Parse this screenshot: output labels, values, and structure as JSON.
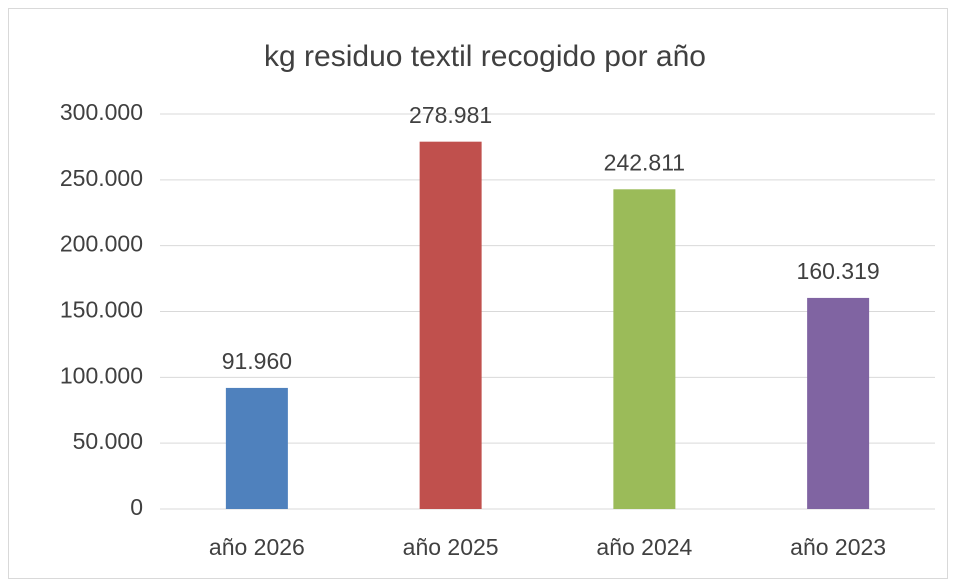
{
  "chart_data": {
    "type": "bar",
    "title": "kg residuo textil recogido por año",
    "categories": [
      "año 2026",
      "año 2025",
      "año 2024",
      "año 2023"
    ],
    "values": [
      91960,
      278981,
      242811,
      160319
    ],
    "value_labels": [
      "91.960",
      "278.981",
      "242.811",
      "160.319"
    ],
    "colors": [
      "#4f81bd",
      "#c0504d",
      "#9bbb59",
      "#8064a2"
    ],
    "ylim": [
      0,
      300000
    ],
    "yticks": [
      0,
      {
        "value": 50000,
        "label": "50.000"
      },
      {
        "value": 100000,
        "label": "100.000"
      },
      {
        "value": 150000,
        "label": "150.000"
      },
      {
        "value": 200000,
        "label": "200.000"
      },
      {
        "value": 250000,
        "label": "250.000"
      },
      {
        "value": 300000,
        "label": "300.000"
      }
    ],
    "grid": true
  }
}
